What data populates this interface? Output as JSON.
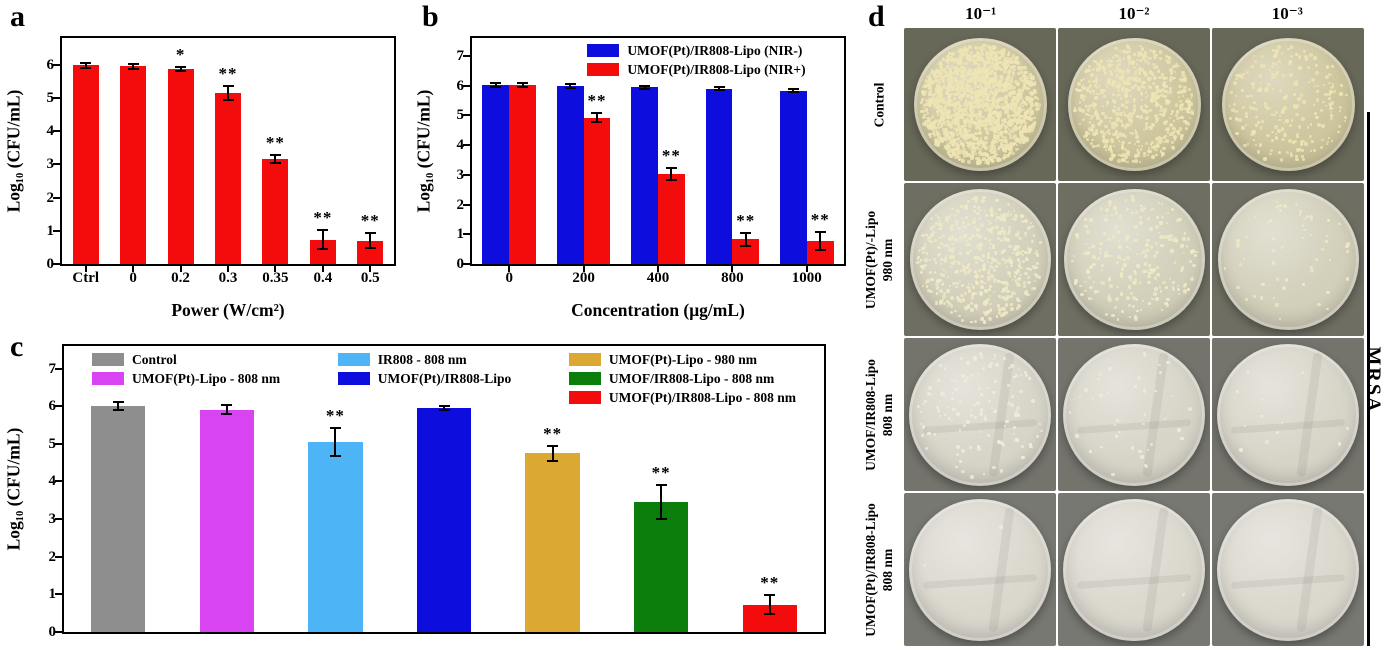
{
  "panel_labels": {
    "a": "a",
    "b": "b",
    "c": "c",
    "d": "d"
  },
  "chart_data": [
    {
      "id": "a",
      "type": "bar",
      "categories": [
        "Ctrl",
        "0",
        "0.2",
        "0.3",
        "0.35",
        "0.4",
        "0.5"
      ],
      "series": [
        {
          "name": "",
          "color": "#f40b0b",
          "values": [
            5.98,
            5.95,
            5.88,
            5.15,
            3.17,
            0.73,
            0.7
          ],
          "errors": [
            0.08,
            0.07,
            0.06,
            0.22,
            0.12,
            0.28,
            0.22
          ],
          "sig": [
            "",
            "",
            "*",
            "**",
            "**",
            "**",
            "**"
          ]
        }
      ],
      "xlabel": "Power (W/cm²)",
      "ylabel": "Log₁₀ (CFU/mL)",
      "ylim": [
        0,
        6.8
      ],
      "yticks": [
        0,
        1,
        2,
        3,
        4,
        5,
        6
      ],
      "bar_frac": 0.55,
      "show_xlabels": true,
      "show_xticks": true
    },
    {
      "id": "b",
      "type": "grouped-bar",
      "categories": [
        "0",
        "200",
        "400",
        "800",
        "1000"
      ],
      "series": [
        {
          "name": "UMOF(Pt)/IR808-Lipo (NIR-)",
          "color": "#0d0ddd",
          "values": [
            6.02,
            5.98,
            5.95,
            5.9,
            5.83
          ],
          "errors": [
            0.07,
            0.06,
            0.05,
            0.05,
            0.04
          ],
          "sig": [
            "",
            "",
            "",
            "",
            ""
          ]
        },
        {
          "name": "UMOF(Pt)/IR808-Lipo (NIR+)",
          "color": "#f40b0b",
          "values": [
            6.02,
            4.92,
            3.02,
            0.83,
            0.78
          ],
          "errors": [
            0.07,
            0.16,
            0.2,
            0.22,
            0.3
          ],
          "sig": [
            "",
            "**",
            "**",
            "**",
            "**"
          ]
        }
      ],
      "xlabel": "Concentration (μg/mL)",
      "ylabel": "Log₁₀ (CFU/mL)",
      "ylim": [
        0,
        7.6
      ],
      "yticks": [
        0,
        1,
        2,
        3,
        4,
        5,
        6,
        7
      ],
      "bar_frac": 0.72,
      "show_xlabels": true,
      "show_xticks": true,
      "legend": {
        "source": "series",
        "columns": [
          [
            0,
            1
          ]
        ],
        "style": "b"
      }
    },
    {
      "id": "c",
      "type": "bar",
      "categories": [
        "Control",
        "UMOF(Pt)-Lipo - 808 nm",
        "IR808 - 808 nm",
        "UMOF(Pt)/IR808-Lipo",
        "UMOF(Pt)-Lipo - 980 nm",
        "UMOF/IR808-Lipo - 808 nm",
        "UMOF(Pt)/IR808-Lipo - 808 nm"
      ],
      "series": [
        {
          "name": "",
          "colors": [
            "#8e8e8e",
            "#d944f2",
            "#4db5f5",
            "#0d0ddd",
            "#dba832",
            "#0b7d0b",
            "#f40b0b"
          ],
          "values": [
            6.0,
            5.9,
            5.05,
            5.95,
            4.75,
            3.45,
            0.72
          ],
          "errors": [
            0.1,
            0.12,
            0.38,
            0.06,
            0.2,
            0.45,
            0.25
          ],
          "sig": [
            "",
            "",
            "**",
            "",
            "**",
            "**",
            "**"
          ]
        }
      ],
      "xlabel": "",
      "ylabel": "Log₁₀ (CFU/mL)",
      "ylim": [
        0,
        7.6
      ],
      "yticks": [
        0,
        1,
        2,
        3,
        4,
        5,
        6,
        7
      ],
      "bar_frac": 0.5,
      "show_xlabels": false,
      "show_xticks": false,
      "legend": {
        "source": "categories",
        "columns": [
          [
            0,
            1
          ],
          [
            2,
            3
          ],
          [
            4,
            5,
            6
          ]
        ],
        "style": "c"
      }
    }
  ],
  "plate_panel": {
    "dilution_headers": [
      "10⁻¹",
      "10⁻²",
      "10⁻³"
    ],
    "side_label": "MRSA",
    "rows": [
      {
        "label_lines": [
          "Control"
        ],
        "bg": "#686859",
        "plate_color": "#cdc69e",
        "colony_color": "#eee4b4",
        "plate_scale": 0.9,
        "streak": false,
        "densities": [
          1500,
          650,
          240
        ]
      },
      {
        "label_lines": [
          "UMOF(Pt)/-Lipo",
          "980 nm"
        ],
        "bg": "#6e6e62",
        "plate_color": "#d2cfba",
        "colony_color": "#efe9c6",
        "plate_scale": 0.95,
        "streak": false,
        "densities": [
          520,
          240,
          60
        ]
      },
      {
        "label_lines": [
          "UMOF/IR808-Lipo",
          "808 nm"
        ],
        "bg": "#74746d",
        "plate_color": "#d7d4c8",
        "colony_color": "#f0ebdc",
        "plate_scale": 0.96,
        "streak": true,
        "densities": [
          130,
          40,
          12
        ]
      },
      {
        "label_lines": [
          "UMOF(Pt)/IR808-Lipo",
          "808 nm"
        ],
        "bg": "#787872",
        "plate_color": "#dad7cd",
        "colony_color": "#f0ebdc",
        "plate_scale": 0.96,
        "streak": true,
        "densities": [
          2,
          1,
          0
        ]
      }
    ]
  }
}
